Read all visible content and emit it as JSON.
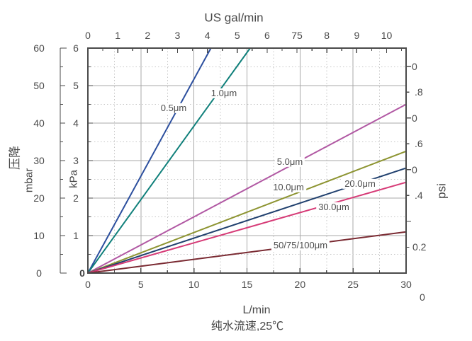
{
  "chart_data": {
    "type": "line",
    "title": "",
    "top_axis": {
      "label": "US gal/min",
      "ticks": [
        "0",
        "1",
        "2",
        "3",
        "4",
        "5",
        "6",
        "75",
        "8",
        "9",
        "10"
      ],
      "range": [
        0,
        10.65
      ]
    },
    "bottom_axis": {
      "label": "L/min",
      "sublabel": "纯水流速,25℃",
      "ticks": [
        "0",
        "5",
        "10",
        "15",
        "20",
        "25",
        "30"
      ],
      "range": [
        0,
        30
      ]
    },
    "left_axis_primary": {
      "label": "mbar",
      "ticks": [
        "60",
        "50",
        "40",
        "30",
        "20",
        "10",
        "0"
      ],
      "range": [
        0,
        60
      ]
    },
    "left_axis_secondary": {
      "label": "kPa",
      "ticks": [
        "6",
        "5",
        "4",
        "3",
        "2",
        "1",
        "0"
      ],
      "range": [
        0,
        6
      ]
    },
    "right_axis": {
      "label": "psi",
      "tick_labels": [
        "0",
        ".8",
        "0",
        ".6",
        "0",
        ".4",
        "0.2",
        "0"
      ]
    },
    "y_axis_title": "压降",
    "grid": {
      "solid_x_step_lmin": 5,
      "dotted_x_step_lmin": 2.5,
      "solid_y_step_kpa": 1,
      "dotted_y_step_kpa": 0.5
    },
    "xlabel_units": "L/min",
    "ylabel_units": "kPa",
    "series": [
      {
        "name": "0.5μm",
        "color": "#2c4f9e",
        "points_lmin_kpa": [
          [
            0,
            0
          ],
          [
            11.6,
            6
          ]
        ]
      },
      {
        "name": "1.0μm",
        "color": "#10807b",
        "points_lmin_kpa": [
          [
            0,
            0
          ],
          [
            15.3,
            6
          ]
        ]
      },
      {
        "name": "5.0μm",
        "color": "#b158a3",
        "points_lmin_kpa": [
          [
            0,
            0
          ],
          [
            30,
            4.5
          ]
        ]
      },
      {
        "name": "10.0μm",
        "color": "#8d9431",
        "points_lmin_kpa": [
          [
            0,
            0
          ],
          [
            30,
            3.25
          ]
        ]
      },
      {
        "name": "20.0μm",
        "color": "#20406e",
        "points_lmin_kpa": [
          [
            0,
            0
          ],
          [
            30,
            2.8
          ]
        ]
      },
      {
        "name": "30.0μm",
        "color": "#d63a76",
        "points_lmin_kpa": [
          [
            0,
            0
          ],
          [
            30,
            2.42
          ]
        ]
      },
      {
        "name": "50/75/100μm",
        "color": "#7a2a32",
        "points_lmin_kpa": [
          [
            0,
            0
          ],
          [
            30,
            1.1
          ]
        ]
      }
    ]
  }
}
